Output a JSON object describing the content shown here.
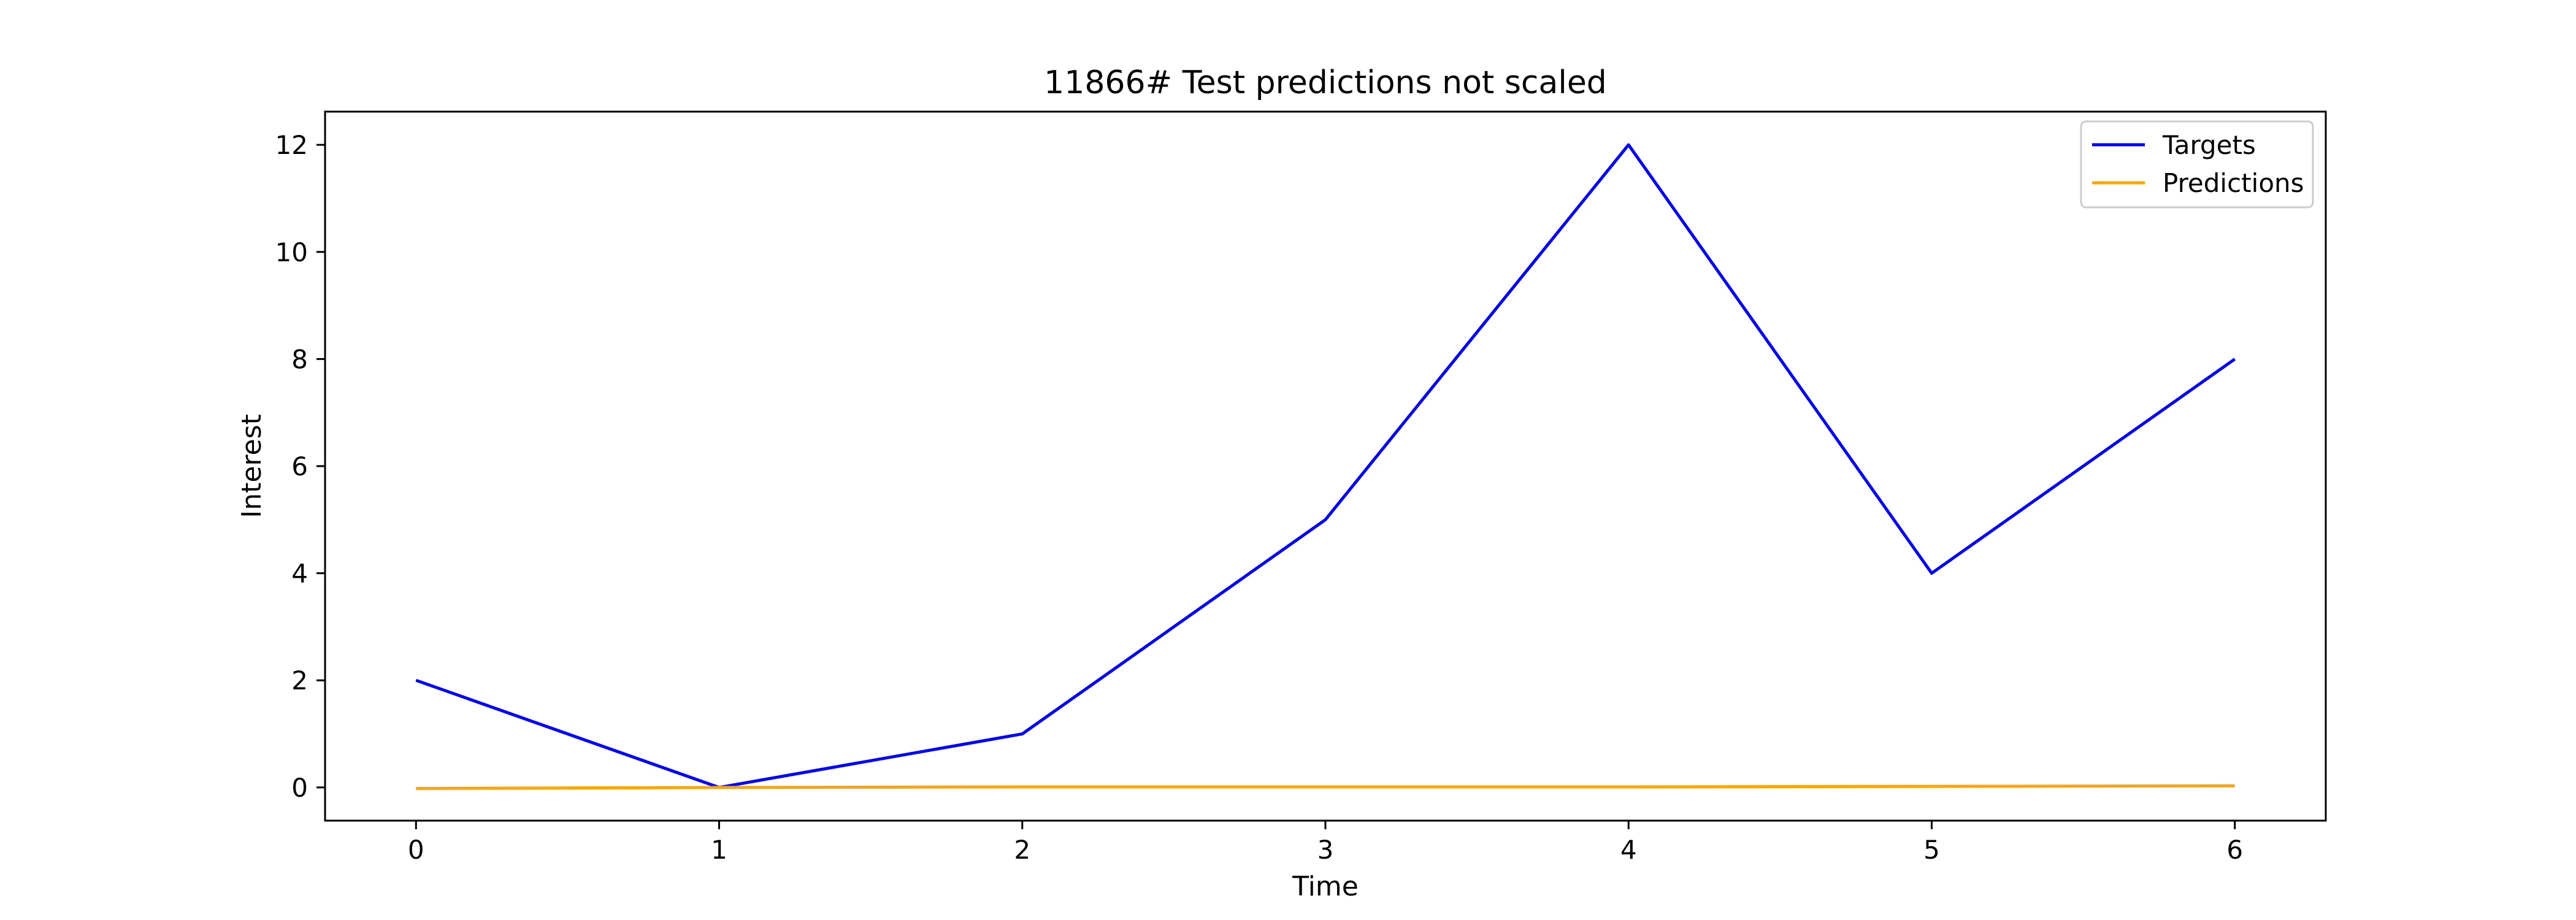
{
  "chart_data": {
    "type": "line",
    "title": "11866# Test predictions not scaled",
    "xlabel": "Time",
    "ylabel": "Interest",
    "x": [
      0,
      1,
      2,
      3,
      4,
      5,
      6
    ],
    "series": [
      {
        "name": "Targets",
        "color": "#0000ff",
        "values": [
          2,
          0,
          1,
          5,
          12,
          4,
          8
        ]
      },
      {
        "name": "Predictions",
        "color": "#ffa500",
        "values": [
          -0.02,
          0.0,
          0.01,
          0.01,
          0.01,
          0.02,
          0.03
        ]
      }
    ],
    "xlim": [
      -0.3,
      6.3
    ],
    "ylim": [
      -0.62,
      12.62
    ],
    "xticks": [
      0,
      1,
      2,
      3,
      4,
      5,
      6
    ],
    "yticks": [
      0,
      2,
      4,
      6,
      8,
      10,
      12
    ],
    "grid": false,
    "legend_position": "upper right"
  }
}
